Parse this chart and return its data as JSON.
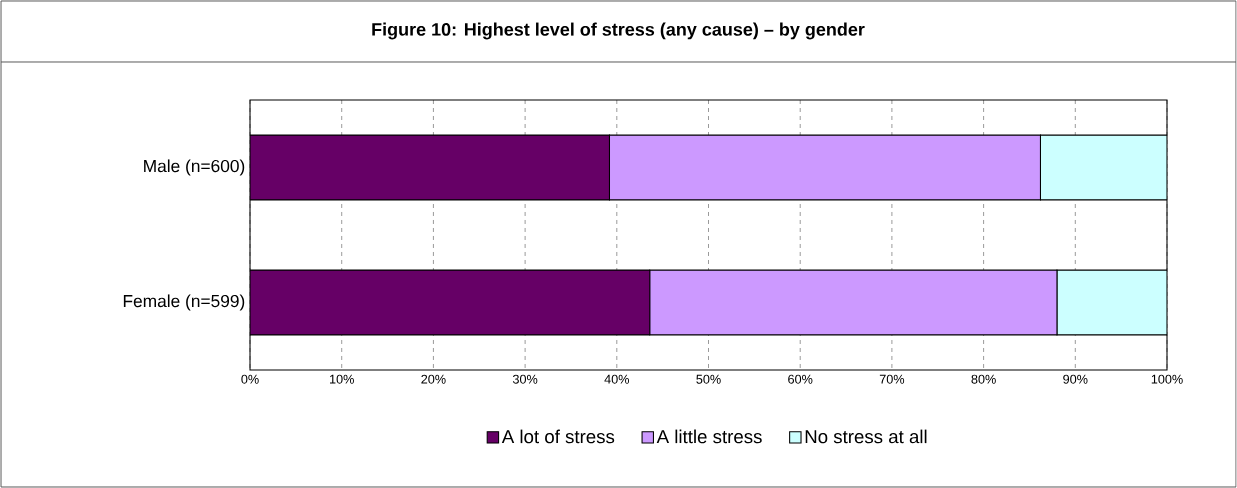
{
  "chart_data": {
    "type": "bar",
    "orientation": "horizontal",
    "stacked": true,
    "title": "Figure 10: Highest level of stress (any cause) – by gender",
    "categories": [
      "Male (n=600)",
      "Female (n=599)"
    ],
    "series": [
      {
        "name": "A lot of stress",
        "color": "#660066",
        "values": [
          39.2,
          43.6
        ]
      },
      {
        "name": "A little stress",
        "color": "#cc99ff",
        "values": [
          47.0,
          44.4
        ]
      },
      {
        "name": "No stress at all",
        "color": "#ccffff",
        "values": [
          13.8,
          12.0
        ]
      }
    ],
    "xlim": [
      0,
      100
    ],
    "xticks": [
      {
        "value": 0,
        "label": "0%"
      },
      {
        "value": 10,
        "label": "10%"
      },
      {
        "value": 20,
        "label": "20%"
      },
      {
        "value": 30,
        "label": "30%"
      },
      {
        "value": 40,
        "label": "40%"
      },
      {
        "value": 50,
        "label": "50%"
      },
      {
        "value": 60,
        "label": "60%"
      },
      {
        "value": 70,
        "label": "70%"
      },
      {
        "value": 80,
        "label": "80%"
      },
      {
        "value": 90,
        "label": "90%"
      },
      {
        "value": 100,
        "label": "100%"
      }
    ],
    "grid": "x",
    "legend": "bottom"
  }
}
